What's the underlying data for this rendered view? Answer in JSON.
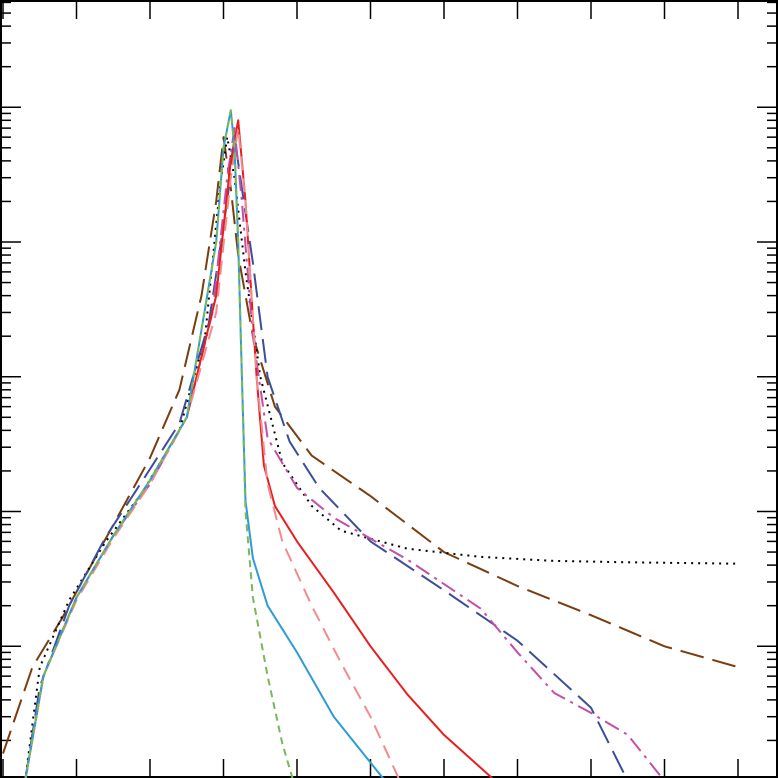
{
  "chart_data": {
    "type": "line",
    "title": "",
    "xlabel": "",
    "ylabel": "",
    "y_scale": "log",
    "xlim": [
      0,
      10
    ],
    "ylim": [
      1e-05,
      10
    ],
    "grid": false,
    "legend": "none",
    "x_major_ticks": [
      0,
      1,
      2,
      3,
      4,
      5,
      6,
      7,
      8,
      9,
      10
    ],
    "y_major_ticks": [
      0.0001,
      0.001,
      0.01,
      0.1,
      1
    ],
    "series": [
      {
        "color": "#7a3d10",
        "style": "long-dash",
        "points": [
          [
            0,
            1.6e-05
          ],
          [
            0.4,
            7e-05
          ],
          [
            0.8,
            0.00016
          ],
          [
            1.2,
            0.0004
          ],
          [
            1.6,
            0.001
          ],
          [
            2.0,
            0.0025
          ],
          [
            2.4,
            0.008
          ],
          [
            2.7,
            0.04
          ],
          [
            2.9,
            0.2
          ],
          [
            3.0,
            0.6
          ],
          [
            3.1,
            0.25
          ],
          [
            3.2,
            0.08
          ],
          [
            3.4,
            0.02
          ],
          [
            3.7,
            0.006
          ],
          [
            4.2,
            0.0026
          ],
          [
            5.0,
            0.0013
          ],
          [
            6.0,
            0.0005
          ],
          [
            7.0,
            0.00028
          ],
          [
            8.0,
            0.00017
          ],
          [
            9.0,
            0.0001
          ],
          [
            10.0,
            7e-05
          ]
        ]
      },
      {
        "color": "#000000",
        "style": "dotted",
        "points": [
          [
            0.3,
            1e-05
          ],
          [
            0.5,
            7e-05
          ],
          [
            0.9,
            0.00022
          ],
          [
            1.4,
            0.0006
          ],
          [
            1.9,
            0.0014
          ],
          [
            2.4,
            0.004
          ],
          [
            2.75,
            0.02
          ],
          [
            2.95,
            0.25
          ],
          [
            3.05,
            0.6
          ],
          [
            3.15,
            0.3
          ],
          [
            3.3,
            0.06
          ],
          [
            3.5,
            0.01
          ],
          [
            3.8,
            0.0023
          ],
          [
            4.2,
            0.0011
          ],
          [
            4.6,
            0.00072
          ],
          [
            5.5,
            0.00053
          ],
          [
            6.5,
            0.00046
          ],
          [
            7.5,
            0.00043
          ],
          [
            8.5,
            0.00042
          ],
          [
            10.0,
            0.00041
          ]
        ]
      },
      {
        "color": "#3c4e98",
        "style": "long-dash",
        "points": [
          [
            0.3,
            1e-05
          ],
          [
            0.5,
            5e-05
          ],
          [
            0.9,
            0.0002
          ],
          [
            1.4,
            0.00065
          ],
          [
            1.9,
            0.0017
          ],
          [
            2.4,
            0.0045
          ],
          [
            2.8,
            0.025
          ],
          [
            3.05,
            0.2
          ],
          [
            3.15,
            0.6
          ],
          [
            3.25,
            0.25
          ],
          [
            3.4,
            0.07
          ],
          [
            3.6,
            0.01
          ],
          [
            3.9,
            0.0033
          ],
          [
            4.3,
            0.0015
          ],
          [
            5.0,
            0.0006
          ],
          [
            6.0,
            0.00026
          ],
          [
            7.0,
            0.00011
          ],
          [
            8.0,
            3.5e-05
          ],
          [
            8.5,
            1e-05
          ]
        ]
      },
      {
        "color": "#c44ea8",
        "style": "dash-dot",
        "points": [
          [
            0.3,
            1e-05
          ],
          [
            0.55,
            6e-05
          ],
          [
            1.0,
            0.00023
          ],
          [
            1.5,
            0.00066
          ],
          [
            2.0,
            0.0016
          ],
          [
            2.5,
            0.005
          ],
          [
            2.85,
            0.03
          ],
          [
            3.05,
            0.3
          ],
          [
            3.15,
            0.7
          ],
          [
            3.25,
            0.2
          ],
          [
            3.4,
            0.02
          ],
          [
            3.6,
            0.0035
          ],
          [
            4.0,
            0.0015
          ],
          [
            4.5,
            0.0009
          ],
          [
            5.5,
            0.00044
          ],
          [
            6.5,
            0.00019
          ],
          [
            7.0,
            9e-05
          ],
          [
            7.5,
            4.5e-05
          ],
          [
            8.0,
            3.2e-05
          ],
          [
            8.5,
            2.2e-05
          ],
          [
            9.0,
            1e-05
          ]
        ]
      },
      {
        "color": "#e81e1e",
        "style": "solid",
        "points": [
          [
            0.3,
            1e-05
          ],
          [
            0.55,
            6e-05
          ],
          [
            1.0,
            0.00023
          ],
          [
            1.5,
            0.00066
          ],
          [
            2.0,
            0.0017
          ],
          [
            2.5,
            0.005
          ],
          [
            2.9,
            0.04
          ],
          [
            3.1,
            0.4
          ],
          [
            3.2,
            0.8
          ],
          [
            3.3,
            0.2
          ],
          [
            3.45,
            0.01
          ],
          [
            3.55,
            0.0022
          ],
          [
            3.7,
            0.0011
          ],
          [
            4.0,
            0.0006
          ],
          [
            4.5,
            0.00025
          ],
          [
            5.0,
            0.0001
          ],
          [
            5.5,
            4.4e-05
          ],
          [
            6.0,
            2.2e-05
          ],
          [
            6.7,
            1e-05
          ]
        ]
      },
      {
        "color": "#f08c8c",
        "style": "dashed",
        "points": [
          [
            0.3,
            1e-05
          ],
          [
            0.55,
            6e-05
          ],
          [
            1.0,
            0.00022
          ],
          [
            1.5,
            0.00063
          ],
          [
            2.0,
            0.0016
          ],
          [
            2.5,
            0.005
          ],
          [
            2.9,
            0.03
          ],
          [
            3.1,
            0.3
          ],
          [
            3.2,
            0.7
          ],
          [
            3.3,
            0.2
          ],
          [
            3.45,
            0.01
          ],
          [
            3.6,
            0.0016
          ],
          [
            3.8,
            0.0006
          ],
          [
            4.2,
            0.0002
          ],
          [
            4.6,
            7.5e-05
          ],
          [
            5.0,
            3e-05
          ],
          [
            5.4,
            1e-05
          ]
        ]
      },
      {
        "color": "#2e9bd6",
        "style": "solid",
        "points": [
          [
            0.3,
            1e-05
          ],
          [
            0.55,
            6e-05
          ],
          [
            1.0,
            0.00023
          ],
          [
            1.5,
            0.00066
          ],
          [
            2.0,
            0.0017
          ],
          [
            2.5,
            0.005
          ],
          [
            2.9,
            0.1
          ],
          [
            3.0,
            0.5
          ],
          [
            3.1,
            0.95
          ],
          [
            3.15,
            0.5
          ],
          [
            3.2,
            0.1
          ],
          [
            3.25,
            0.01
          ],
          [
            3.3,
            0.0012
          ],
          [
            3.4,
            0.00045
          ],
          [
            3.6,
            0.0002
          ],
          [
            4.0,
            9e-05
          ],
          [
            4.5,
            3e-05
          ],
          [
            5.2,
            1e-05
          ]
        ]
      },
      {
        "color": "#78b85a",
        "style": "short-dash",
        "points": [
          [
            0.3,
            1e-05
          ],
          [
            0.55,
            6e-05
          ],
          [
            1.0,
            0.00023
          ],
          [
            1.5,
            0.00066
          ],
          [
            2.0,
            0.0017
          ],
          [
            2.5,
            0.005
          ],
          [
            2.9,
            0.1
          ],
          [
            3.0,
            0.5
          ],
          [
            3.1,
            0.95
          ],
          [
            3.15,
            0.5
          ],
          [
            3.2,
            0.1
          ],
          [
            3.25,
            0.01
          ],
          [
            3.3,
            0.001
          ],
          [
            3.4,
            0.00023
          ],
          [
            3.6,
            6e-05
          ],
          [
            3.8,
            1.9e-05
          ],
          [
            3.95,
            1e-05
          ]
        ]
      }
    ]
  }
}
